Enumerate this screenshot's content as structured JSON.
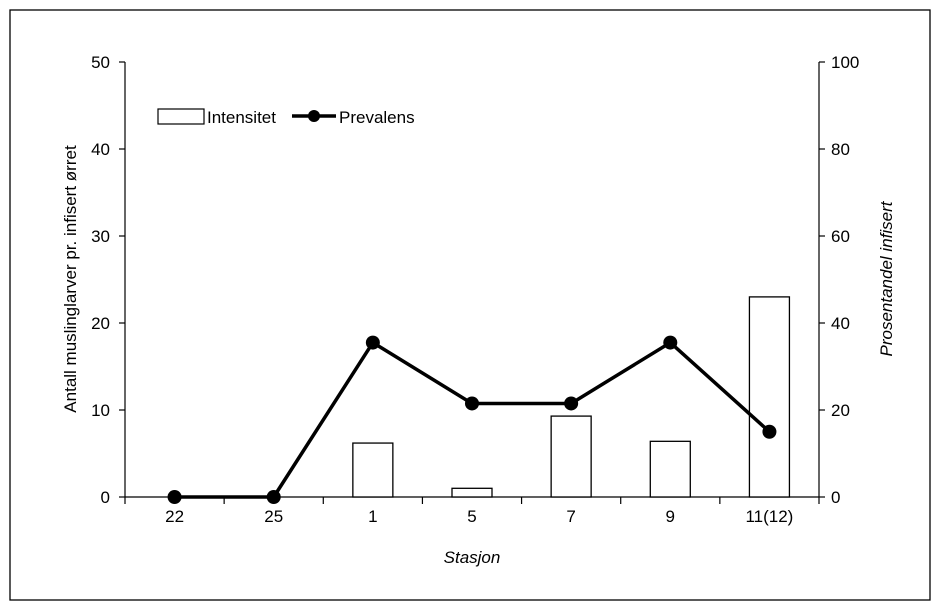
{
  "chart_data": {
    "type": "bar",
    "categories": [
      "22",
      "25",
      "1",
      "5",
      "7",
      "9",
      "11(12)"
    ],
    "series": [
      {
        "name": "Intensitet",
        "type": "bar",
        "axis": "left",
        "values": [
          0,
          0,
          6.2,
          1.0,
          9.3,
          6.4,
          23.0
        ]
      },
      {
        "name": "Prevalens",
        "type": "line",
        "axis": "right",
        "values": [
          0,
          0,
          35.5,
          21.5,
          21.5,
          35.5,
          15.0
        ]
      }
    ],
    "xlabel": "Stasjon",
    "ylabel": "Antall muslinglarver pr. infisert ørret",
    "y2label": "Prosentandel infisert",
    "ylim": [
      0,
      50
    ],
    "y2lim": [
      0,
      100
    ],
    "yticks": [
      "0",
      "10",
      "20",
      "30",
      "40",
      "50"
    ],
    "y2ticks": [
      "0",
      "20",
      "40",
      "60",
      "80",
      "100"
    ],
    "grid": false,
    "legend_position": "top-left",
    "colors": {
      "bar_fill": "#ffffff",
      "bar_stroke": "#000000",
      "line": "#000000",
      "marker": "#000000"
    }
  }
}
